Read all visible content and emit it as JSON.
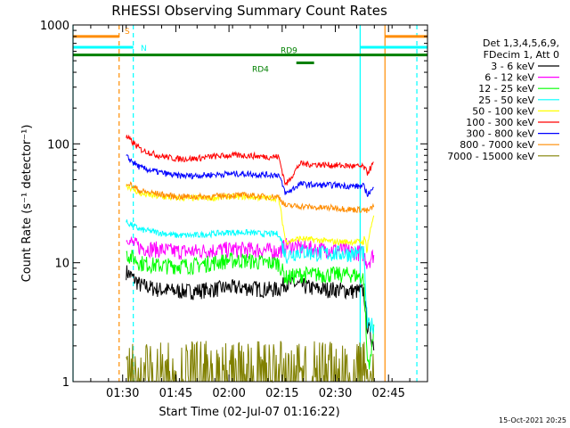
{
  "chart_data": {
    "type": "line",
    "title": "RHESSI Observing Summary Count Rates",
    "xlabel": "Start Time (02-Jul-07 01:16:22)",
    "ylabel": "Count Rate (s⁻¹ detector⁻¹)",
    "yscale": "log",
    "ylim": [
      1,
      1000
    ],
    "xlim": [
      "01:16",
      "02:56"
    ],
    "x_ticks": [
      "01:30",
      "01:45",
      "02:00",
      "02:15",
      "02:30",
      "02:45"
    ],
    "y_ticks": [
      "1",
      "10",
      "100",
      "1000"
    ],
    "legend_header": [
      "Det 1,3,4,5,6,9,",
      "FDecim 1, Att 0"
    ],
    "legend_position": "right",
    "timestamp": "15-Oct-2021 20:25",
    "series": [
      {
        "name": "3 - 6 keV",
        "color": "#000000",
        "x": [
          "01:31",
          "01:35",
          "01:40",
          "01:45",
          "01:50",
          "01:55",
          "02:00",
          "02:05",
          "02:10",
          "02:14",
          "02:16",
          "02:20",
          "02:25",
          "02:30",
          "02:35",
          "02:38",
          "02:39",
          "02:41"
        ],
        "y": [
          8.5,
          6.5,
          6.0,
          5.8,
          5.8,
          6.0,
          6.2,
          6.2,
          6.0,
          6.0,
          6.8,
          6.5,
          6.0,
          6.0,
          5.8,
          5.8,
          3.0,
          2.0
        ]
      },
      {
        "name": "6 - 12 keV",
        "color": "#ff00ff",
        "x": [
          "01:31",
          "01:35",
          "01:40",
          "01:45",
          "01:50",
          "01:55",
          "02:00",
          "02:05",
          "02:10",
          "02:14",
          "02:16",
          "02:20",
          "02:25",
          "02:30",
          "02:35",
          "02:38",
          "02:39",
          "02:41"
        ],
        "y": [
          15.5,
          13.5,
          13.0,
          12.5,
          12.5,
          12.8,
          13.0,
          13.0,
          12.8,
          12.5,
          14.0,
          13.5,
          13.0,
          13.0,
          12.5,
          12.0,
          10.0,
          12.0
        ]
      },
      {
        "name": "12 - 25 keV",
        "color": "#00ff00",
        "x": [
          "01:31",
          "01:35",
          "01:40",
          "01:45",
          "01:50",
          "01:55",
          "02:00",
          "02:05",
          "02:10",
          "02:14",
          "02:16",
          "02:20",
          "02:25",
          "02:30",
          "02:35",
          "02:38",
          "02:39",
          "02:40",
          "02:41"
        ],
        "y": [
          12.0,
          10.0,
          9.5,
          9.5,
          9.5,
          10.0,
          10.5,
          10.5,
          10.0,
          10.0,
          7.5,
          8.0,
          8.0,
          8.0,
          8.0,
          7.5,
          1.5,
          1.5,
          3.5
        ]
      },
      {
        "name": "25 - 50 keV",
        "color": "#00ffff",
        "x": [
          "01:31",
          "01:35",
          "01:40",
          "01:45",
          "01:50",
          "01:55",
          "02:00",
          "02:05",
          "02:10",
          "02:14",
          "02:16",
          "02:20",
          "02:25",
          "02:30",
          "02:35",
          "02:38",
          "02:39",
          "02:41"
        ],
        "y": [
          22.0,
          19.0,
          18.0,
          17.0,
          17.0,
          17.5,
          18.0,
          18.0,
          17.5,
          17.5,
          11.5,
          12.5,
          12.0,
          12.0,
          12.0,
          12.0,
          3.0,
          3.0
        ]
      },
      {
        "name": "50 - 100 keV",
        "color": "#ffff00",
        "x": [
          "01:31",
          "01:35",
          "01:40",
          "01:45",
          "01:50",
          "01:55",
          "02:00",
          "02:05",
          "02:10",
          "02:14",
          "02:16",
          "02:20",
          "02:25",
          "02:30",
          "02:35",
          "02:38",
          "02:39",
          "02:41"
        ],
        "y": [
          45.0,
          38.0,
          36.0,
          35.0,
          35.0,
          35.0,
          36.0,
          36.0,
          35.0,
          35.0,
          15.0,
          16.0,
          15.5,
          15.0,
          15.0,
          15.0,
          14.0,
          27.0
        ]
      },
      {
        "name": "100 - 300 keV",
        "color": "#ff0000",
        "x": [
          "01:31",
          "01:35",
          "01:40",
          "01:45",
          "01:50",
          "01:55",
          "02:00",
          "02:05",
          "02:10",
          "02:14",
          "02:16",
          "02:20",
          "02:25",
          "02:30",
          "02:35",
          "02:38",
          "02:39",
          "02:41"
        ],
        "y": [
          115,
          90,
          80,
          75,
          75,
          78,
          80,
          80,
          78,
          78,
          45,
          68,
          67,
          66,
          65,
          64,
          57,
          70
        ]
      },
      {
        "name": "300 - 800 keV",
        "color": "#0000ff",
        "x": [
          "01:31",
          "01:35",
          "01:40",
          "01:45",
          "01:50",
          "01:55",
          "02:00",
          "02:05",
          "02:10",
          "02:14",
          "02:16",
          "02:20",
          "02:25",
          "02:30",
          "02:35",
          "02:38",
          "02:39",
          "02:41"
        ],
        "y": [
          78,
          63,
          58,
          54,
          54,
          55,
          56,
          56,
          55,
          55,
          38,
          46,
          45,
          45,
          44,
          44,
          38,
          42
        ]
      },
      {
        "name": "800 - 7000 keV",
        "color": "#ff8c00",
        "x": [
          "01:31",
          "01:35",
          "01:40",
          "01:45",
          "01:50",
          "01:55",
          "02:00",
          "02:05",
          "02:10",
          "02:14",
          "02:16",
          "02:20",
          "02:25",
          "02:30",
          "02:35",
          "02:38",
          "02:39",
          "02:41"
        ],
        "y": [
          48,
          40,
          38,
          36,
          36,
          36,
          37,
          37,
          36,
          36,
          30,
          30,
          29,
          29,
          28,
          28,
          27,
          30
        ]
      },
      {
        "name": "7000 - 15000 keV",
        "color": "#808000",
        "x": [
          "01:31",
          "01:35",
          "01:40",
          "01:45",
          "01:50",
          "01:55",
          "02:00",
          "02:05",
          "02:10",
          "02:14",
          "02:16",
          "02:20",
          "02:25",
          "02:30",
          "02:35",
          "02:38",
          "02:39",
          "02:41"
        ],
        "y": [
          1.5,
          1.2,
          1.0,
          1.0,
          1.0,
          1.0,
          1.5,
          1.5,
          1.5,
          1.5,
          1.0,
          1.0,
          1.0,
          1.0,
          1.2,
          1.0,
          1.0,
          1.0
        ]
      }
    ],
    "flags": [
      {
        "label": "S",
        "color": "#ff8c00",
        "level": 800,
        "segments": [
          [
            "01:16",
            "01:29"
          ],
          [
            "02:44",
            "02:56"
          ]
        ]
      },
      {
        "label": "N",
        "color": "#00ffff",
        "level": 650,
        "segments": [
          [
            "01:16",
            "01:33"
          ],
          [
            "02:37",
            "02:56"
          ]
        ]
      },
      {
        "label": "RD9",
        "color": "#008000",
        "level": 560,
        "segments": [
          [
            "01:16",
            "02:56"
          ]
        ]
      },
      {
        "label": "RD4",
        "color": "#008000",
        "level": 480,
        "segments": [
          [
            "02:19",
            "02:24"
          ]
        ]
      }
    ],
    "vertical_markers": [
      {
        "x": "01:29",
        "color": "#ff8c00",
        "style": "dashed"
      },
      {
        "x": "01:33",
        "color": "#00ffff",
        "style": "dashed"
      },
      {
        "x": "02:37",
        "color": "#00ffff",
        "style": "solid"
      },
      {
        "x": "02:44",
        "color": "#ff8c00",
        "style": "solid"
      },
      {
        "x": "02:53",
        "color": "#00ffff",
        "style": "dashed"
      },
      {
        "x": "01:16",
        "color": "#00ffff",
        "style": "solid"
      }
    ]
  }
}
